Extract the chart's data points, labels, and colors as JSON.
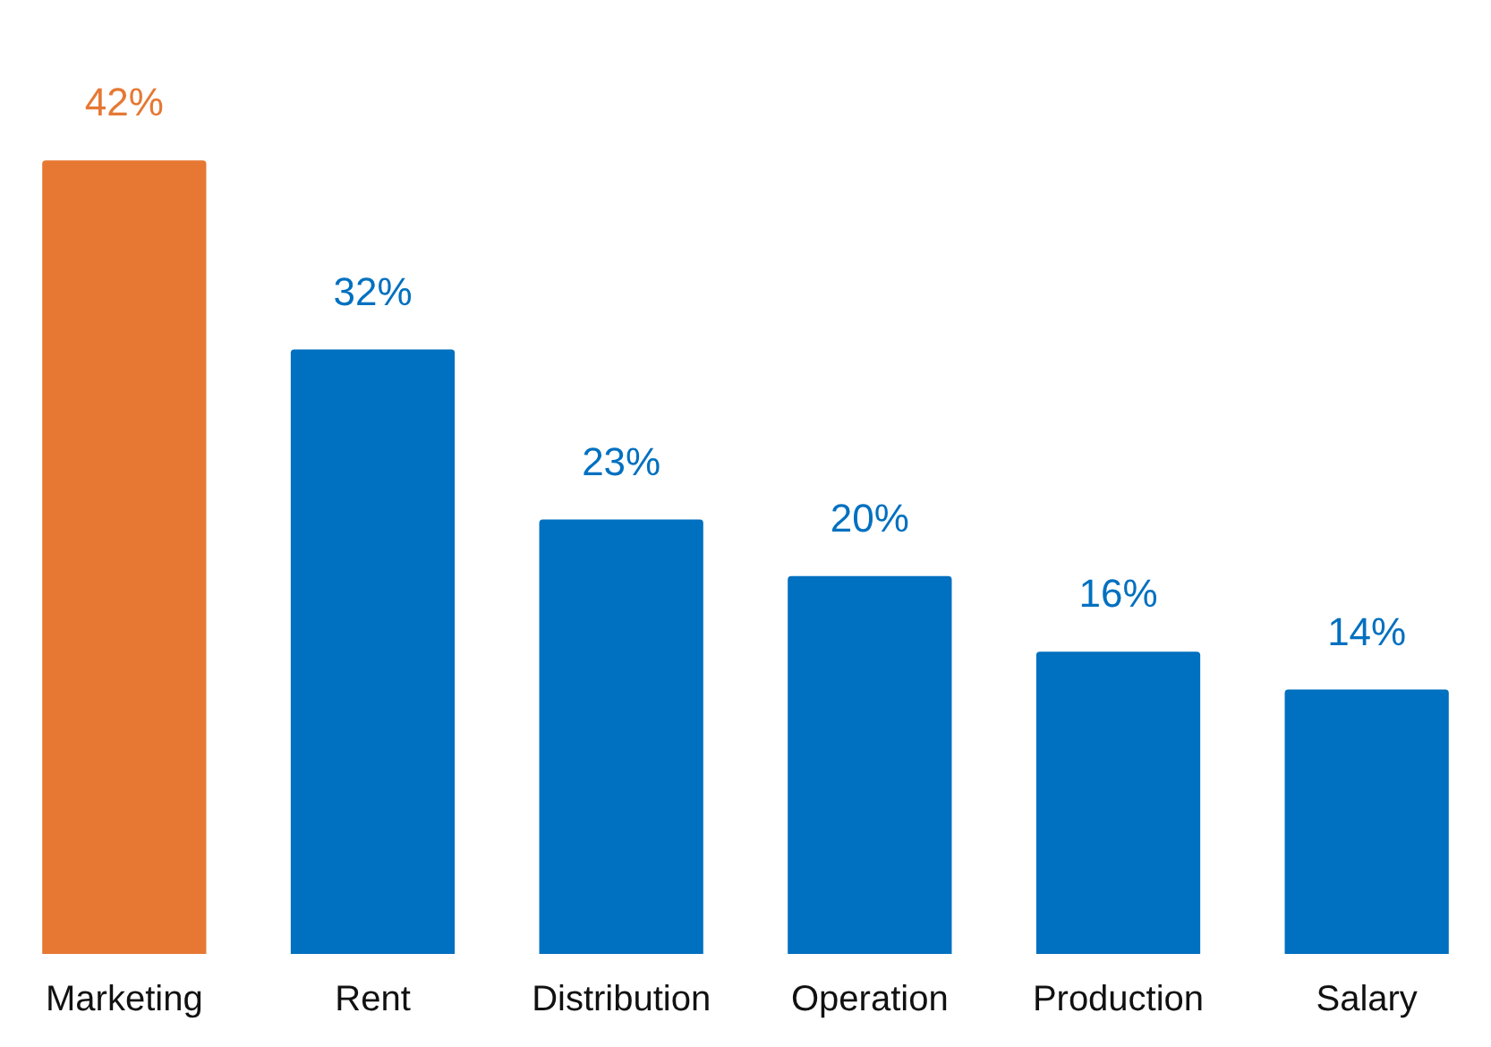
{
  "chart_data": {
    "type": "bar",
    "categories": [
      "Marketing",
      "Rent",
      "Distribution",
      "Operation",
      "Production",
      "Salary"
    ],
    "values": [
      42,
      32,
      23,
      20,
      16,
      14
    ],
    "colors": [
      "#e67833",
      "#0070c0",
      "#0070c0",
      "#0070c0",
      "#0070c0",
      "#0070c0"
    ],
    "value_labels": [
      "42%",
      "32%",
      "23%",
      "20%",
      "16%",
      "14%"
    ],
    "grid": false,
    "legend": false
  }
}
